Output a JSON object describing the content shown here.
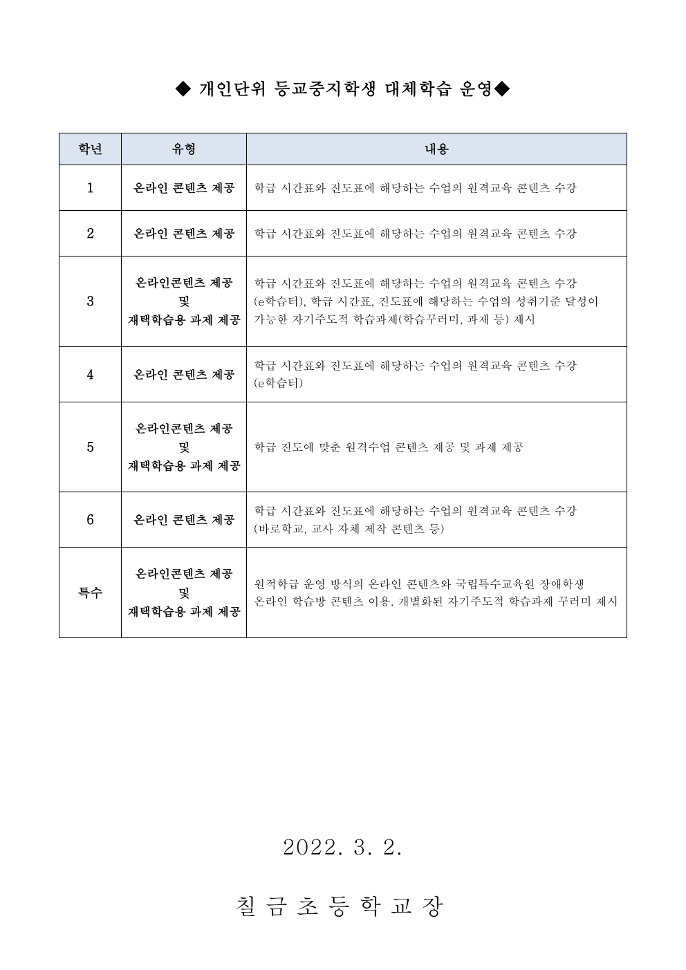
{
  "title": "◆ 개인단위 등교중지학생 대체학습 운영◆",
  "table": {
    "headers": {
      "grade": "학년",
      "type": "유형",
      "content": "내용"
    },
    "rows": [
      {
        "grade": "1",
        "type": "온라인 콘텐츠 제공",
        "content": "학급 시간표와 진도표에 해당하는 수업의 원격교육 콘텐츠 수강"
      },
      {
        "grade": "2",
        "type": "온라인 콘텐츠 제공",
        "content": "학급 시간표와 진도표에 해당하는 수업의 원격교육 콘텐츠 수강"
      },
      {
        "grade": "3",
        "type": "온라인콘텐츠 제공\n및\n재택학습용 과제 제공",
        "content": "학급 시간표와 진도표에 해당하는 수업의 원격교육 콘텐츠 수강 (e학습터), 학급 시간표, 진도표에 해당하는 수업의 성취기준 달성이 가능한 자기주도적 학습과제(학습꾸러미, 과제 등) 제시"
      },
      {
        "grade": "4",
        "type": "온라인 콘텐츠 제공",
        "content": "학급 시간표와 진도표에 해당하는 수업의 원격교육 콘텐츠 수강(e학습터)"
      },
      {
        "grade": "5",
        "type": "온라인콘텐츠 제공\n및\n재택학습용 과제 제공",
        "content": "학급 진도에 맞춘 원격수업 콘텐츠 제공 및 과제 제공"
      },
      {
        "grade": "6",
        "type": "온라인 콘텐츠 제공",
        "content": "학급 시간표와 진도표에 해당하는 수업의 원격교육 콘텐츠 수강 (바로학교, 교사 자체 제작 콘텐츠 등)"
      },
      {
        "grade": "특수",
        "type": "온라인콘텐츠 제공\n및\n재택학습용 과제 제공",
        "content": "원적학급 운영 방식의 온라인 콘텐츠와 국립특수교육원 장애학생 온라인 학습방 콘텐츠 이용. 개별화된 자기주도적 학습과제 꾸러미 제시"
      }
    ],
    "header_bg": "#dbe4f0",
    "border_color": "#000000"
  },
  "footer": {
    "date": "2022. 3. 2.",
    "signature": "칠금초등학교장"
  }
}
